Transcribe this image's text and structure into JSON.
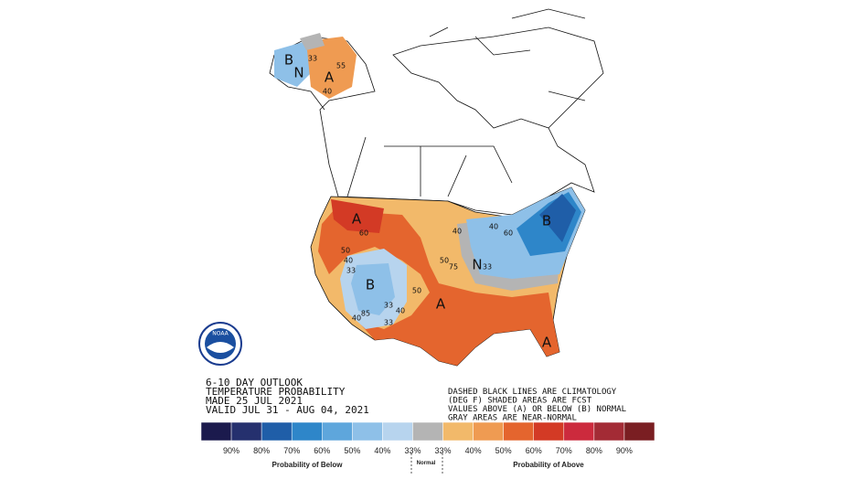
{
  "outlook": [
    "6-10 DAY OUTLOOK",
    "TEMPERATURE PROBABILITY",
    "MADE  25 JUL 2021",
    "VALID  JUL 31 - AUG 04, 2021"
  ],
  "notes": [
    "DASHED BLACK LINES ARE CLIMATOLOGY",
    "(DEG F) SHADED AREAS ARE FCST",
    "VALUES ABOVE (A) OR BELOW (B) NORMAL",
    "GRAY AREAS ARE NEAR-NORMAL"
  ],
  "logo": "NOAA",
  "map_letters": [
    "A",
    "B",
    "A",
    "A",
    "B",
    "N",
    "B",
    "N",
    "A"
  ],
  "map_numbers": [
    "60",
    "50",
    "40",
    "33",
    "33",
    "40",
    "50",
    "85",
    "40",
    "33",
    "50",
    "75",
    "40",
    "33",
    "60",
    "40",
    "33",
    "55",
    "40"
  ],
  "legend": {
    "colors": [
      "#1b1a4d",
      "#25306e",
      "#1f5ea8",
      "#2e86c9",
      "#5ea6dc",
      "#8ec0e8",
      "#b7d4ee",
      "#b4b4b4",
      "#f2b96a",
      "#ef9b52",
      "#e4652e",
      "#d33a25",
      "#cc2a3d",
      "#a32b35",
      "#7a1e22"
    ],
    "labels": [
      "90%",
      "80%",
      "70%",
      "60%",
      "50%",
      "40%",
      "33%",
      "33%",
      "40%",
      "50%",
      "60%",
      "70%",
      "80%",
      "90%"
    ],
    "below": "Probability of Below",
    "normal": "Normal",
    "above": "Probability of Above"
  }
}
